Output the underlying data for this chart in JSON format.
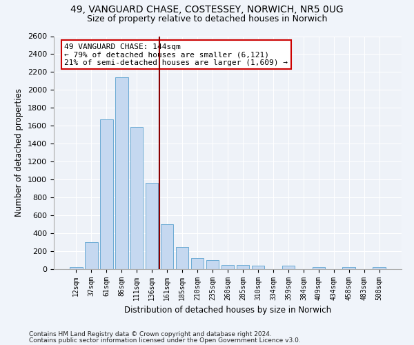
{
  "title1": "49, VANGUARD CHASE, COSTESSEY, NORWICH, NR5 0UG",
  "title2": "Size of property relative to detached houses in Norwich",
  "xlabel": "Distribution of detached houses by size in Norwich",
  "ylabel": "Number of detached properties",
  "categories": [
    "12sqm",
    "37sqm",
    "61sqm",
    "86sqm",
    "111sqm",
    "136sqm",
    "161sqm",
    "185sqm",
    "210sqm",
    "235sqm",
    "260sqm",
    "285sqm",
    "310sqm",
    "334sqm",
    "359sqm",
    "384sqm",
    "409sqm",
    "434sqm",
    "458sqm",
    "483sqm",
    "508sqm"
  ],
  "values": [
    25,
    300,
    1670,
    2140,
    1590,
    960,
    500,
    250,
    120,
    100,
    50,
    50,
    35,
    0,
    35,
    0,
    20,
    0,
    20,
    0,
    25
  ],
  "bar_color": "#c5d8f0",
  "bar_edgecolor": "#6aaad4",
  "vline_x": 5.5,
  "vline_color": "#8b0000",
  "annotation_line1": "49 VANGUARD CHASE: 144sqm",
  "annotation_line2": "← 79% of detached houses are smaller (6,121)",
  "annotation_line3": "21% of semi-detached houses are larger (1,609) →",
  "annotation_box_color": "#ffffff",
  "annotation_box_edgecolor": "#cc0000",
  "ylim": [
    0,
    2600
  ],
  "yticks": [
    0,
    200,
    400,
    600,
    800,
    1000,
    1200,
    1400,
    1600,
    1800,
    2000,
    2200,
    2400,
    2600
  ],
  "footnote1": "Contains HM Land Registry data © Crown copyright and database right 2024.",
  "footnote2": "Contains public sector information licensed under the Open Government Licence v3.0.",
  "bg_color": "#f0f4fa",
  "plot_bg_color": "#eef2f8",
  "grid_color": "#ffffff"
}
